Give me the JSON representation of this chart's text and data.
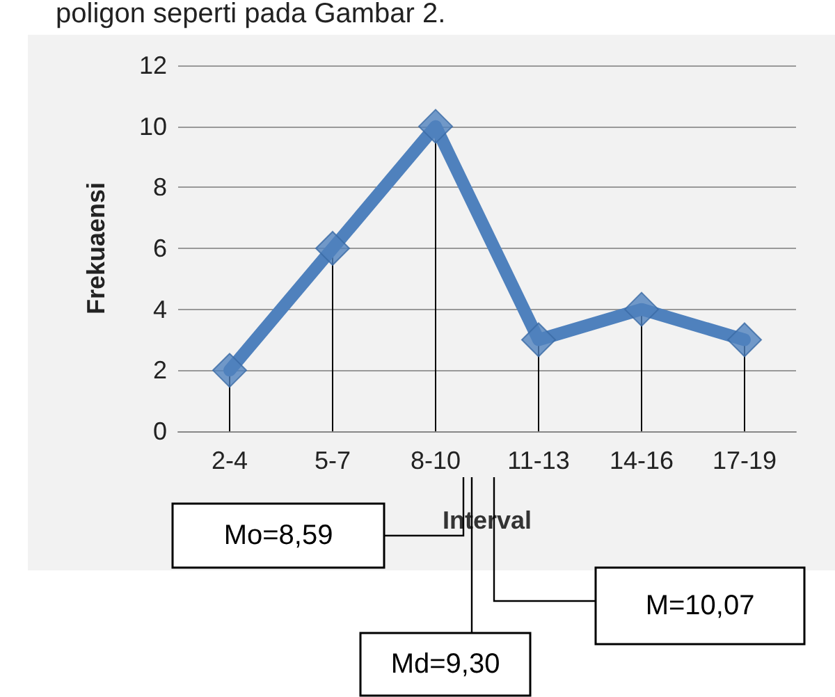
{
  "chart_data": {
    "type": "line",
    "xlabel": "Interval",
    "ylabel": "Frekuaensi",
    "categories": [
      "2-4",
      "5-7",
      "8-10",
      "11-13",
      "14-16",
      "17-19"
    ],
    "series": [
      {
        "color": "#4f81bd",
        "marker": "none",
        "values": [
          2,
          6,
          10,
          3,
          4,
          3
        ]
      },
      {
        "type": "lollipop",
        "color": "#4f81bd",
        "values": [
          2,
          6,
          10,
          3,
          4,
          3
        ]
      }
    ],
    "ylim": [
      0,
      12
    ],
    "yticks": [
      0,
      2,
      4,
      6,
      8,
      10,
      12
    ],
    "grid": "y",
    "marker": "diamond",
    "line_style": "solid",
    "annotations": [
      "poligon seperti pada Gambar 2.",
      "Mo=8,59",
      "Md=9,30",
      "M=10,07"
    ]
  }
}
